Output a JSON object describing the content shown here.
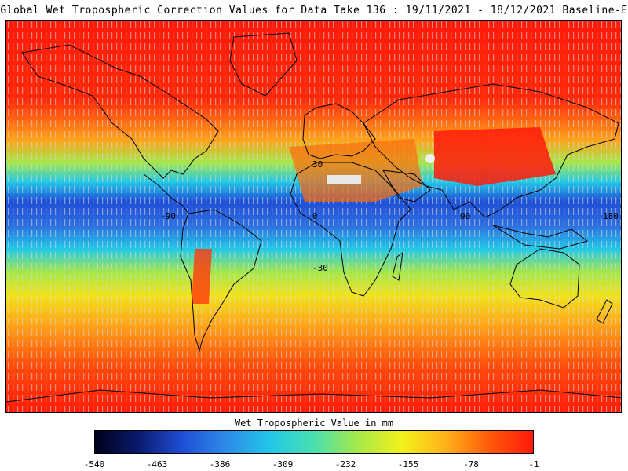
{
  "title": "Global Wet Tropospheric Correction Values for Data Take 136 : 19/11/2021 - 18/12/2021 Baseline-E",
  "map": {
    "lon_labels": [
      "-90",
      "0",
      "90",
      "180"
    ],
    "lat_labels": [
      "30",
      "-30"
    ],
    "palette": [
      "#00001a",
      "#0a1a6e",
      "#1f4fd6",
      "#2e8ae8",
      "#22c8e8",
      "#49e0b0",
      "#a6e84a",
      "#f2f21a",
      "#ffb21a",
      "#ff5a0a",
      "#ff1a0a"
    ]
  },
  "colorbar": {
    "title": "Wet Tropospheric Value in mm",
    "ticks": [
      "-540",
      "-463",
      "-386",
      "-309",
      "-232",
      "-155",
      "-78",
      "-1"
    ],
    "min": -540,
    "max": -1
  }
}
